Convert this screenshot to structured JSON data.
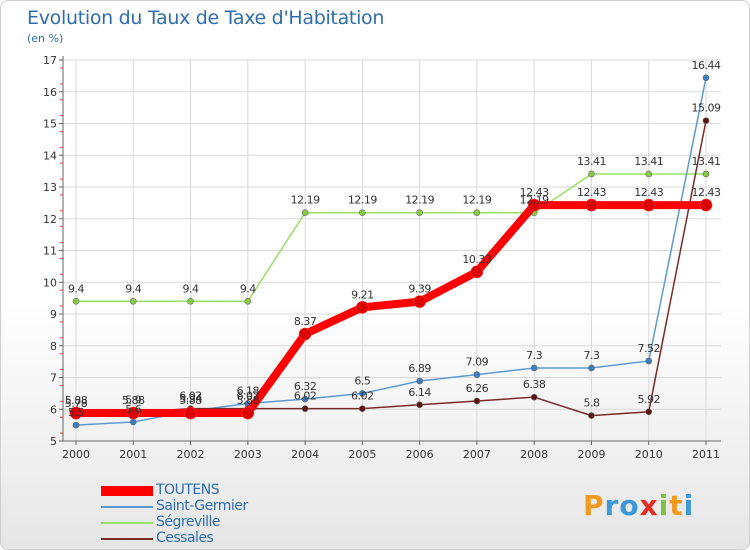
{
  "title": "Evolution du Taux de Taxe d'Habitation",
  "unit_label": "(en %)",
  "brand": {
    "text": "Proxiti",
    "letters": [
      {
        "ch": "P",
        "color": "#f29a1f"
      },
      {
        "ch": "r",
        "color": "#3d9ad6"
      },
      {
        "ch": "o",
        "color": "#3d9ad6"
      },
      {
        "ch": "x",
        "color": "#e02c24"
      },
      {
        "ch": "i",
        "color": "#7dc142"
      },
      {
        "ch": "t",
        "color": "#f29a1f"
      },
      {
        "ch": "i",
        "color": "#3d9ad6"
      }
    ]
  },
  "chart_data": {
    "type": "line",
    "title": "Evolution du Taux de Taxe d'Habitation",
    "ylabel": "(en %)",
    "xlabel": "",
    "x": [
      "2000",
      "2001",
      "2002",
      "2003",
      "2004",
      "2005",
      "2006",
      "2007",
      "2008",
      "2009",
      "2010",
      "2011"
    ],
    "ylim": [
      5,
      17
    ],
    "yticks": [
      "5",
      "6",
      "7",
      "8",
      "9",
      "10",
      "11",
      "12",
      "13",
      "14",
      "15",
      "16",
      "17"
    ],
    "grid": true,
    "legend_position": "bottom-left",
    "series": [
      {
        "name": "TOUTENS",
        "color": "#ff0000",
        "values": [
          5.88,
          5.88,
          5.88,
          5.88,
          8.37,
          9.21,
          9.39,
          10.33,
          12.43,
          12.43,
          12.43,
          12.43
        ],
        "labels": [
          "5.88",
          "5.88",
          "5.88",
          "5.88",
          "8.37",
          "9.21",
          "9.39",
          "10.33",
          "12.43",
          "12.43",
          "12.43",
          "12.43"
        ]
      },
      {
        "name": "Saint-Germier",
        "color": "#5a9bd4",
        "values": [
          5.5,
          5.6,
          5.94,
          6.18,
          6.32,
          6.5,
          6.89,
          7.09,
          7.3,
          7.3,
          7.52,
          16.44
        ],
        "labels": [
          "5.5",
          "5.6",
          "5.94",
          "6.18",
          "6.32",
          "6.5",
          "6.89",
          "7.09",
          "7.3",
          "7.3",
          "7.52",
          "16.44"
        ]
      },
      {
        "name": "Ségreville",
        "color": "#99dd66",
        "values": [
          9.4,
          9.4,
          9.4,
          9.4,
          12.19,
          12.19,
          12.19,
          12.19,
          12.19,
          13.41,
          13.41,
          13.41
        ],
        "labels": [
          "9.4",
          "9.4",
          "9.4",
          "9.4",
          "12.19",
          "12.19",
          "12.19",
          "12.19",
          "12.19",
          "13.41",
          "13.41",
          "13.41"
        ]
      },
      {
        "name": "Cessales",
        "color": "#7a2a2a",
        "values": [
          5.78,
          5.9,
          6.02,
          6.02,
          6.02,
          6.02,
          6.14,
          6.26,
          6.38,
          5.8,
          5.92,
          15.09
        ],
        "labels": [
          "5.78",
          "5.9",
          "6.02",
          "6.02",
          "6.02",
          "6.02",
          "6.14",
          "6.26",
          "6.38",
          "5.8",
          "5.92",
          "15.09"
        ]
      }
    ]
  }
}
